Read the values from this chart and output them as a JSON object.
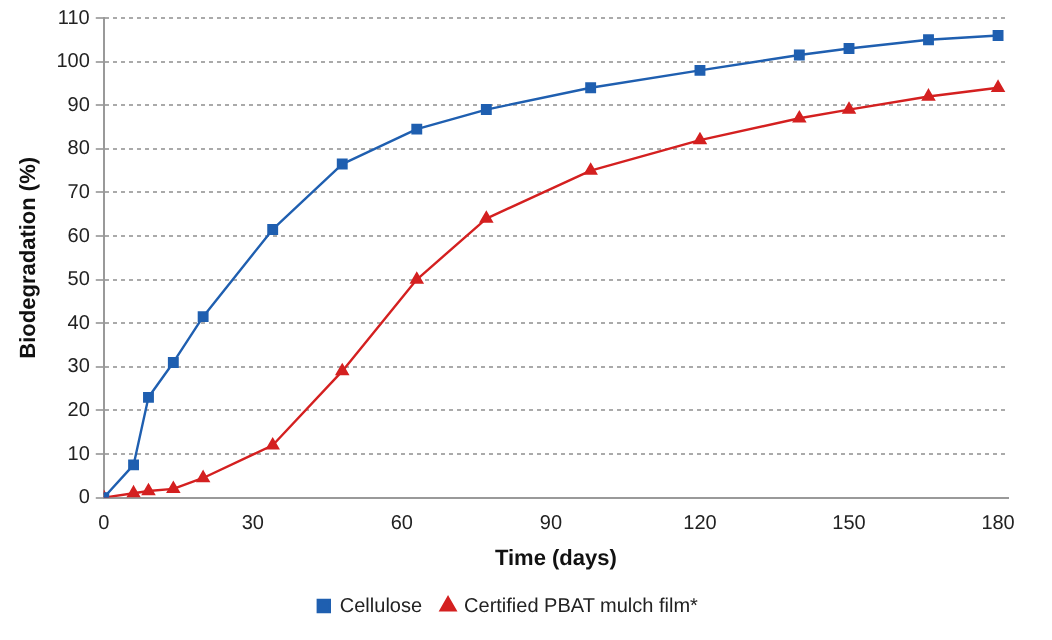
{
  "chart_data": {
    "type": "line",
    "xlabel": "Time (days)",
    "ylabel": "Biodegradation (%)",
    "xlim": [
      0,
      182
    ],
    "xticks": [
      0,
      30,
      60,
      90,
      120,
      150,
      180
    ],
    "ylim": [
      0,
      110
    ],
    "yticks": [
      0,
      10,
      20,
      30,
      40,
      50,
      60,
      70,
      80,
      90,
      100,
      110
    ],
    "grid": "y",
    "legend": "bottom",
    "series": [
      {
        "name": "Cellulose",
        "color": "#1f5fb0",
        "marker": "square",
        "x": [
          0,
          6,
          9,
          14,
          20,
          34,
          48,
          63,
          77,
          98,
          120,
          140,
          150,
          166,
          180
        ],
        "values": [
          0,
          7.5,
          23,
          31,
          41.5,
          61.5,
          76.5,
          84.5,
          89,
          94,
          98,
          101.5,
          103,
          105,
          106
        ]
      },
      {
        "name": "Certified PBAT mulch film*",
        "color": "#d42020",
        "marker": "triangle",
        "x": [
          0,
          6,
          9,
          14,
          20,
          34,
          48,
          63,
          77,
          98,
          120,
          140,
          150,
          166,
          180
        ],
        "values": [
          0,
          1,
          1.5,
          2,
          4.5,
          12,
          29,
          50,
          64,
          75,
          82,
          87,
          89,
          92,
          94
        ]
      }
    ]
  }
}
